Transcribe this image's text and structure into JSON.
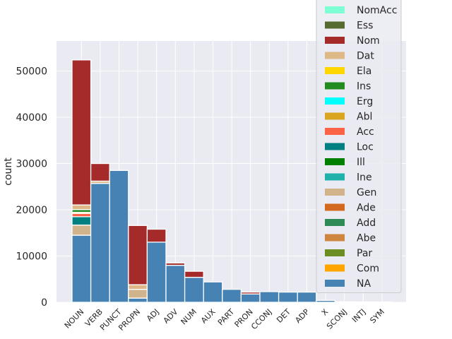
{
  "chart_data": {
    "type": "bar",
    "stacked": true,
    "ylabel": "count",
    "xlabel": "",
    "ylim": [
      0,
      56500
    ],
    "yticks": [
      0,
      10000,
      20000,
      30000,
      40000,
      50000
    ],
    "ytick_labels": [
      "0",
      "10000",
      "20000",
      "30000",
      "40000",
      "50000"
    ],
    "grid": true,
    "legend_position": "upper-right",
    "categories": [
      "NOUN",
      "VERB",
      "PUNCT",
      "PROPN",
      "ADJ",
      "ADV",
      "NUM",
      "AUX",
      "PART",
      "PRON",
      "CCONJ",
      "DET",
      "ADP",
      "X",
      "SCONJ",
      "INTJ",
      "SYM"
    ],
    "series": [
      {
        "name": "NA",
        "color": "#4682b4",
        "values": [
          14500,
          25700,
          28500,
          900,
          13000,
          8000,
          5400,
          4400,
          2800,
          1800,
          2300,
          2200,
          2200,
          400,
          100,
          80,
          60
        ]
      },
      {
        "name": "Com",
        "color": "#ffa500",
        "values": [
          0,
          0,
          0,
          0,
          0,
          0,
          0,
          0,
          0,
          0,
          0,
          0,
          0,
          0,
          0,
          0,
          0
        ]
      },
      {
        "name": "Par",
        "color": "#6b8e23",
        "values": [
          0,
          0,
          0,
          0,
          0,
          0,
          0,
          0,
          0,
          0,
          0,
          0,
          0,
          0,
          0,
          0,
          0
        ]
      },
      {
        "name": "Abe",
        "color": "#cd853f",
        "values": [
          0,
          0,
          0,
          0,
          0,
          0,
          0,
          0,
          0,
          0,
          0,
          0,
          0,
          0,
          0,
          0,
          0
        ]
      },
      {
        "name": "Add",
        "color": "#2e8b57",
        "values": [
          0,
          0,
          0,
          0,
          0,
          0,
          0,
          0,
          0,
          0,
          0,
          0,
          0,
          0,
          0,
          0,
          0
        ]
      },
      {
        "name": "Ade",
        "color": "#d2691e",
        "values": [
          0,
          0,
          0,
          0,
          0,
          0,
          0,
          0,
          0,
          0,
          0,
          0,
          0,
          0,
          0,
          0,
          0
        ]
      },
      {
        "name": "Gen",
        "color": "#d2b48c",
        "values": [
          2200,
          0,
          0,
          1900,
          0,
          0,
          0,
          0,
          0,
          0,
          0,
          0,
          0,
          0,
          0,
          0,
          0
        ]
      },
      {
        "name": "Ine",
        "color": "#20b2aa",
        "values": [
          0,
          0,
          0,
          0,
          0,
          0,
          0,
          0,
          0,
          0,
          0,
          0,
          0,
          0,
          0,
          0,
          0
        ]
      },
      {
        "name": "Ill",
        "color": "#008000",
        "values": [
          0,
          0,
          0,
          0,
          0,
          0,
          0,
          0,
          0,
          0,
          0,
          0,
          0,
          0,
          0,
          0,
          0
        ]
      },
      {
        "name": "Loc",
        "color": "#008080",
        "values": [
          1800,
          0,
          0,
          0,
          0,
          0,
          0,
          0,
          0,
          0,
          0,
          0,
          0,
          0,
          0,
          0,
          0
        ]
      },
      {
        "name": "Acc",
        "color": "#ff6347",
        "values": [
          700,
          0,
          0,
          0,
          0,
          0,
          0,
          0,
          0,
          0,
          0,
          0,
          0,
          0,
          0,
          0,
          0
        ]
      },
      {
        "name": "Abl",
        "color": "#daa520",
        "values": [
          250,
          0,
          0,
          0,
          0,
          0,
          0,
          0,
          0,
          0,
          0,
          0,
          0,
          0,
          0,
          0,
          0
        ]
      },
      {
        "name": "Erg",
        "color": "#00ffff",
        "values": [
          0,
          0,
          0,
          0,
          0,
          0,
          0,
          0,
          0,
          0,
          0,
          0,
          0,
          0,
          0,
          0,
          0
        ]
      },
      {
        "name": "Ins",
        "color": "#228b22",
        "values": [
          600,
          0,
          0,
          0,
          0,
          0,
          0,
          0,
          0,
          0,
          0,
          0,
          0,
          0,
          0,
          0,
          0
        ]
      },
      {
        "name": "Ela",
        "color": "#ffd700",
        "values": [
          0,
          0,
          0,
          0,
          0,
          0,
          0,
          0,
          0,
          0,
          0,
          0,
          0,
          0,
          0,
          0,
          0
        ]
      },
      {
        "name": "Dat",
        "color": "#deb887",
        "values": [
          1000,
          500,
          0,
          1000,
          0,
          0,
          0,
          0,
          0,
          0,
          0,
          0,
          0,
          0,
          0,
          0,
          0
        ]
      },
      {
        "name": "Nom",
        "color": "#a52a2a",
        "values": [
          31350,
          3800,
          0,
          12800,
          2800,
          500,
          1300,
          0,
          0,
          400,
          0,
          0,
          0,
          0,
          0,
          0,
          0
        ]
      },
      {
        "name": "Ess",
        "color": "#556b2f",
        "values": [
          0,
          0,
          0,
          0,
          0,
          0,
          0,
          0,
          0,
          0,
          0,
          0,
          0,
          0,
          0,
          0,
          0
        ]
      },
      {
        "name": "NomAcc",
        "color": "#7fffd4",
        "values": [
          0,
          0,
          0,
          0,
          0,
          0,
          0,
          0,
          0,
          0,
          0,
          0,
          0,
          0,
          0,
          0,
          0
        ]
      }
    ],
    "legend_order": [
      "NomAcc",
      "Ess",
      "Nom",
      "Dat",
      "Ela",
      "Ins",
      "Erg",
      "Abl",
      "Acc",
      "Loc",
      "Ill",
      "Ine",
      "Gen",
      "Ade",
      "Add",
      "Abe",
      "Par",
      "Com",
      "NA"
    ],
    "colors": {
      "background": "#eaeaf2",
      "grid": "#ffffff",
      "bar_edge": "#ffffff"
    }
  }
}
